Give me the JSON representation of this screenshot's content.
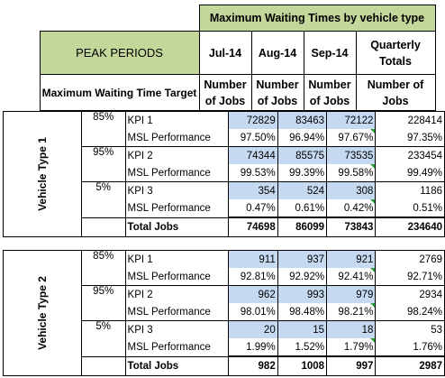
{
  "header": {
    "title": "Maximum Waiting Times by vehicle type",
    "peak_periods": "PEAK PERIODS",
    "target_label": "Maximum Waiting Time Target",
    "months": [
      "Jul-14",
      "Aug-14",
      "Sep-14"
    ],
    "quarterly": "Quarterly Totals",
    "num_jobs": "Number of Jobs"
  },
  "vehicles": [
    {
      "name": "Vehicle Type 1",
      "groups": [
        {
          "pct": "85%",
          "kpi": "KPI 1",
          "kpi_values": [
            "72829",
            "83463",
            "72122",
            "228414"
          ],
          "msl": "MSL Performance",
          "msl_values": [
            "97.50%",
            "96.94%",
            "97.67%",
            "97.35%"
          ]
        },
        {
          "pct": "95%",
          "kpi": "KPI 2",
          "kpi_values": [
            "74344",
            "85575",
            "73535",
            "233454"
          ],
          "msl": "MSL Performance",
          "msl_values": [
            "99.53%",
            "99.39%",
            "99.58%",
            "99.49%"
          ]
        },
        {
          "pct": "5%",
          "kpi": "KPI 3",
          "kpi_values": [
            "354",
            "524",
            "308",
            "1186"
          ],
          "msl": "MSL Performance",
          "msl_values": [
            "0.47%",
            "0.61%",
            "0.42%",
            "0.51%"
          ]
        }
      ],
      "total_label": "Total Jobs",
      "totals": [
        "74698",
        "86099",
        "73843",
        "234640"
      ]
    },
    {
      "name": "Vehicle Type 2",
      "groups": [
        {
          "pct": "85%",
          "kpi": "KPI 1",
          "kpi_values": [
            "911",
            "937",
            "921",
            "2769"
          ],
          "msl": "MSL Performance",
          "msl_values": [
            "92.81%",
            "92.92%",
            "92.41%",
            "92.71%"
          ]
        },
        {
          "pct": "95%",
          "kpi": "KPI 2",
          "kpi_values": [
            "962",
            "993",
            "979",
            "2934"
          ],
          "msl": "MSL Performance",
          "msl_values": [
            "98.01%",
            "98.48%",
            "98.21%",
            "98.24%"
          ]
        },
        {
          "pct": "5%",
          "kpi": "KPI 3",
          "kpi_values": [
            "20",
            "15",
            "18",
            "53"
          ],
          "msl": "MSL Performance",
          "msl_values": [
            "1.99%",
            "1.52%",
            "1.79%",
            "1.76%"
          ]
        }
      ],
      "total_label": "Total Jobs",
      "totals": [
        "982",
        "1008",
        "997",
        "2987"
      ]
    }
  ]
}
